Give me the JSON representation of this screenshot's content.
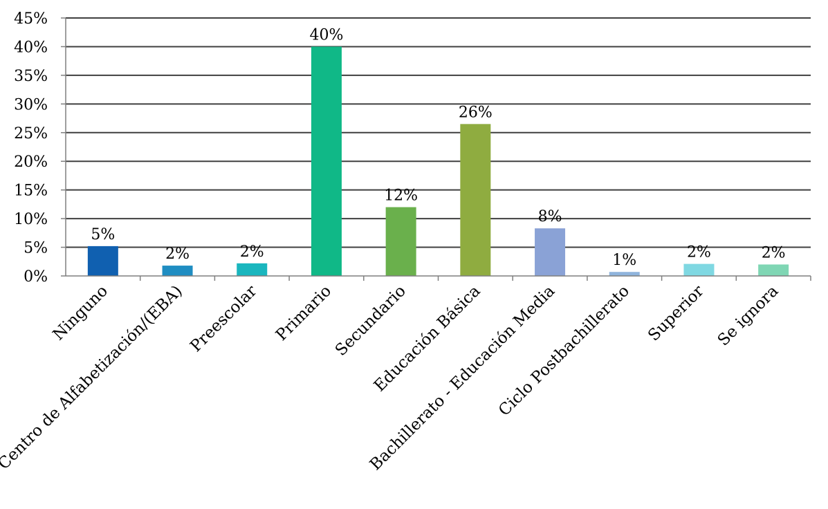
{
  "chart_data": {
    "type": "bar",
    "title": "",
    "xlabel": "",
    "ylabel": "",
    "ylim": [
      0,
      45
    ],
    "yticks": [
      0,
      5,
      10,
      15,
      20,
      25,
      30,
      35,
      40,
      45
    ],
    "ytick_labels": [
      "0%",
      "5%",
      "10%",
      "15%",
      "20%",
      "25%",
      "30%",
      "35%",
      "40%",
      "45%"
    ],
    "grid": true,
    "legend": "none",
    "categories": [
      "Ninguno",
      "Centro de Alfabetización/(EBA)",
      "Preescolar",
      "Primario",
      "Secundario",
      "Educación Básica",
      "Bachillerato - Educación Media",
      "Ciclo Postbachillerato",
      "Superior",
      "Se ignora"
    ],
    "values": [
      5.2,
      1.8,
      2.2,
      40.0,
      12.0,
      26.5,
      8.3,
      0.7,
      2.1,
      2.0
    ],
    "data_labels": [
      "5%",
      "2%",
      "2%",
      "40%",
      "12%",
      "26%",
      "8%",
      "1%",
      "2%",
      "2%"
    ],
    "colors": [
      "#1060b0",
      "#1f8dc2",
      "#1ab6be",
      "#10b887",
      "#6ab04c",
      "#8fac40",
      "#8aa2d6",
      "#8fb4dc",
      "#7fd8e2",
      "#7fd6b4"
    ]
  }
}
